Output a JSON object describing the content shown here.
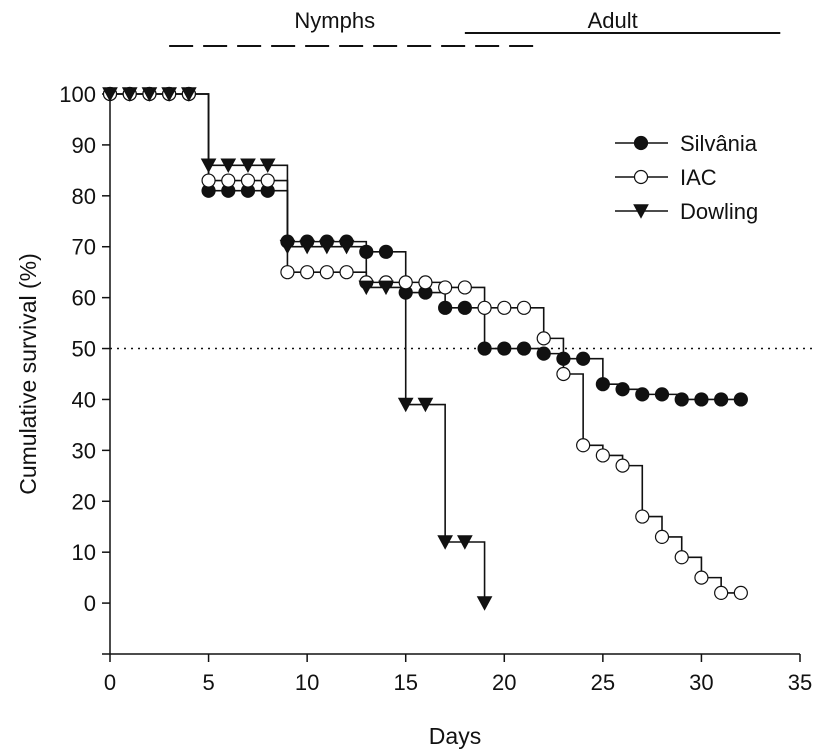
{
  "chart_data": {
    "type": "line",
    "xlabel": "Days",
    "ylabel": "Cumulative survival (%)",
    "xlim": [
      0,
      35
    ],
    "ylim": [
      -10,
      100
    ],
    "xticks": [
      0,
      5,
      10,
      15,
      20,
      25,
      30,
      35
    ],
    "yticks": [
      0,
      10,
      20,
      30,
      40,
      50,
      60,
      70,
      80,
      90,
      100
    ],
    "reference_line": {
      "y": 50,
      "style": "dotted"
    },
    "stages": [
      {
        "label": "Nymphs",
        "x_start": 3,
        "x_end": 21.5,
        "style": "dashed"
      },
      {
        "label": "Adult",
        "x_start": 18,
        "x_end": 34,
        "style": "solid"
      }
    ],
    "legend_position": "top-right",
    "series": [
      {
        "name": "Silvânia",
        "marker": "filled-circle",
        "step": true,
        "x": [
          0,
          1,
          2,
          3,
          4,
          5,
          6,
          7,
          8,
          9,
          10,
          11,
          12,
          13,
          14,
          15,
          16,
          17,
          18,
          19,
          20,
          21,
          22,
          23,
          24,
          25,
          26,
          27,
          28,
          29,
          30,
          31,
          32
        ],
        "y": [
          100,
          100,
          100,
          100,
          100,
          81,
          81,
          81,
          81,
          71,
          71,
          71,
          71,
          69,
          69,
          61,
          61,
          58,
          58,
          50,
          50,
          50,
          49,
          48,
          48,
          43,
          42,
          41,
          41,
          40,
          40,
          40,
          40
        ]
      },
      {
        "name": "IAC",
        "marker": "open-circle",
        "step": true,
        "x": [
          0,
          1,
          2,
          3,
          4,
          5,
          6,
          7,
          8,
          9,
          10,
          11,
          12,
          13,
          14,
          15,
          16,
          17,
          18,
          19,
          20,
          21,
          22,
          23,
          24,
          25,
          26,
          27,
          28,
          29,
          30,
          31,
          32
        ],
        "y": [
          100,
          100,
          100,
          100,
          100,
          83,
          83,
          83,
          83,
          65,
          65,
          65,
          65,
          63,
          63,
          63,
          63,
          62,
          62,
          58,
          58,
          58,
          52,
          45,
          31,
          29,
          27,
          17,
          13,
          9,
          5,
          2,
          2
        ]
      },
      {
        "name": "Dowling",
        "marker": "filled-triangle-down",
        "step": true,
        "x": [
          0,
          1,
          2,
          3,
          4,
          5,
          6,
          7,
          8,
          9,
          10,
          11,
          12,
          13,
          14,
          15,
          16,
          17,
          18,
          19
        ],
        "y": [
          100,
          100,
          100,
          100,
          100,
          86,
          86,
          86,
          86,
          70,
          70,
          70,
          70,
          62,
          62,
          39,
          39,
          12,
          12,
          0
        ]
      }
    ]
  }
}
